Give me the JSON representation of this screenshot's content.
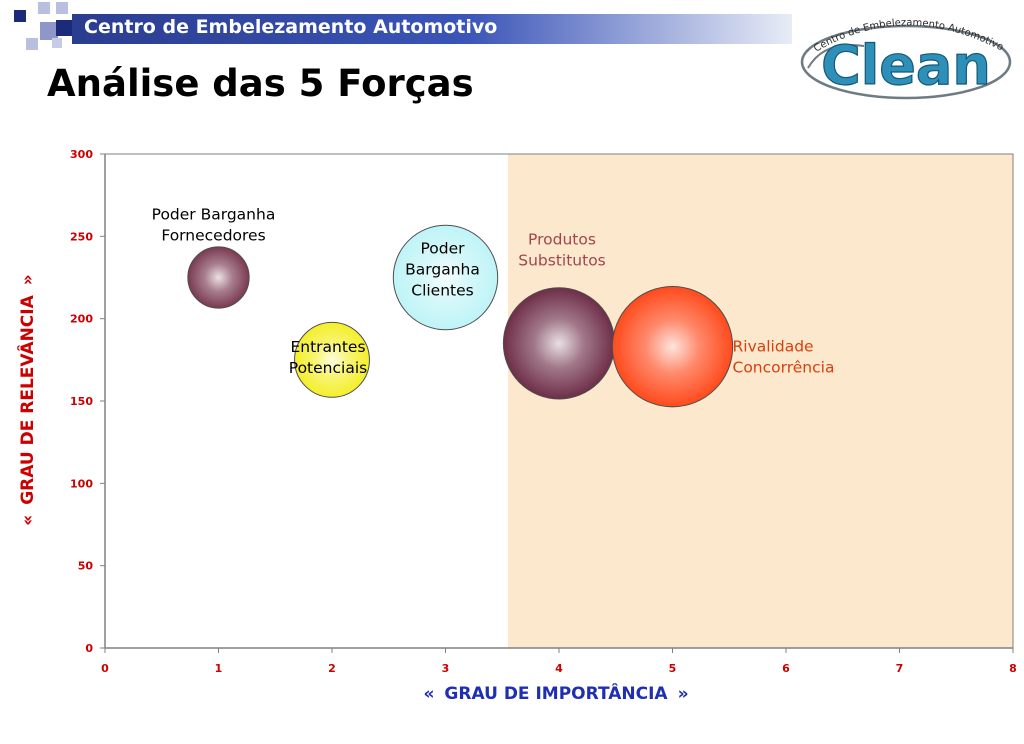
{
  "header": {
    "text": "Centro de Embelezamento Automotivo"
  },
  "page_title": "Análise das 5 Forças",
  "logo": {
    "arc_text": "Centro de Embelezamento Automotivo",
    "word": "Clean"
  },
  "colors": {
    "header_bar": "#2a3d8f",
    "axis_ticks": "#cc0000",
    "ylabel": "#cc0000",
    "xlabel": "#1f2fb0",
    "highlight_region": "#fce8cc"
  },
  "chart_data": {
    "type": "bubble",
    "title": "",
    "xlabel": "GRAU DE IMPORTÂNCIA",
    "ylabel": "GRAU DE RELEVÂNCIA",
    "axis_arrow_left": "«",
    "axis_arrow_right": "»",
    "xlim": [
      0,
      8
    ],
    "ylim": [
      0,
      300
    ],
    "xticks": [
      "0",
      "1",
      "2",
      "3",
      "4",
      "5",
      "6",
      "7",
      "8"
    ],
    "yticks": [
      "0",
      "50",
      "100",
      "150",
      "200",
      "250",
      "300"
    ],
    "grid": false,
    "highlight_region": {
      "x_from": 3.55,
      "x_to": 8
    },
    "points": [
      {
        "label_lines": [
          "Poder Barganha",
          "Fornecedores"
        ],
        "x": 1,
        "y": 225,
        "size": 0.27,
        "color": "#7a3a52",
        "label_color": "#000000"
      },
      {
        "label_lines": [
          "Entrantes",
          "Potenciais"
        ],
        "x": 2,
        "y": 175,
        "size": 0.33,
        "color": "#f4ef2a",
        "label_color": "#000000"
      },
      {
        "label_lines": [
          "Poder",
          "Barganha",
          "Clientes"
        ],
        "x": 3,
        "y": 225,
        "size": 0.46,
        "color": "#bff4f7",
        "label_color": "#000000"
      },
      {
        "label_lines": [
          "Produtos",
          "Substitutos"
        ],
        "x": 4,
        "y": 185,
        "size": 0.49,
        "color": "#6e2e48",
        "label_color": "#a2454f"
      },
      {
        "label_lines": [
          "Rivalidade",
          "Concorrência"
        ],
        "x": 5,
        "y": 183,
        "size": 0.53,
        "color": "#ff4a1c",
        "label_color": "#d9400f"
      }
    ]
  }
}
